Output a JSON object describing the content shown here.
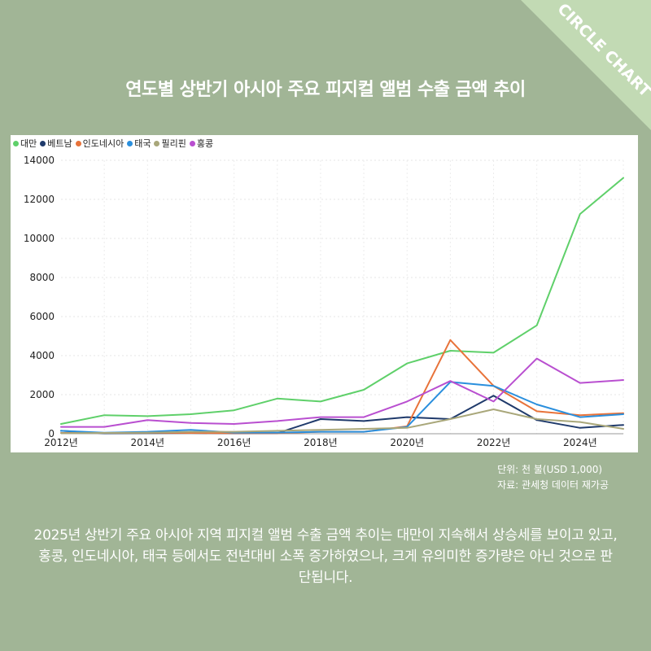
{
  "badge": {
    "text": "CIRCLE CHART"
  },
  "title": "연도별 상반기 아시아 주요 피지컬 앨범 수출 금액 추이",
  "notes": {
    "unit": "단위: 천 불(USD 1,000)",
    "source": "자료: 관세청 데이터 재가공"
  },
  "description": "2025년 상반기 주요 아시아 지역 피지컬 앨범 수출 금액 추이는 대만이 지속해서 상승세를 보이고 있고, 홍콩, 인도네시아, 태국 등에서도 전년대비 소폭 증가하였으나, 크게 유의미한 증가량은 아닌 것으로 판단됩니다.",
  "colors": {
    "background": "#a1b596",
    "badge": "#c2dab4"
  },
  "chart_data": {
    "type": "line",
    "x": [
      2012,
      2013,
      2014,
      2015,
      2016,
      2017,
      2018,
      2019,
      2020,
      2021,
      2022,
      2023,
      2024,
      2025
    ],
    "xtick_values": [
      2012,
      2014,
      2016,
      2018,
      2020,
      2022,
      2024
    ],
    "xtick_labels": [
      "2012년",
      "2014년",
      "2016년",
      "2018년",
      "2020년",
      "2022년",
      "2024년"
    ],
    "ylim": [
      0,
      14000
    ],
    "yticks": [
      0,
      2000,
      4000,
      6000,
      8000,
      10000,
      12000,
      14000
    ],
    "grid": true,
    "legend_position": "top-left",
    "series": [
      {
        "name": "대만",
        "color": "#5fd06a",
        "values": [
          500,
          950,
          900,
          1000,
          1200,
          1800,
          1650,
          2250,
          3600,
          4250,
          4150,
          5550,
          11250,
          13100
        ]
      },
      {
        "name": "베트남",
        "color": "#1f3a6b",
        "values": [
          150,
          20,
          30,
          40,
          20,
          30,
          750,
          650,
          850,
          750,
          1950,
          700,
          300,
          450
        ]
      },
      {
        "name": "인도네시아",
        "color": "#e8733a",
        "values": [
          40,
          40,
          50,
          40,
          30,
          30,
          100,
          100,
          380,
          4800,
          2450,
          1150,
          950,
          1050
        ]
      },
      {
        "name": "태국",
        "color": "#2a8fdd",
        "values": [
          150,
          50,
          100,
          200,
          60,
          60,
          100,
          100,
          350,
          2650,
          2450,
          1500,
          850,
          1000
        ]
      },
      {
        "name": "필리핀",
        "color": "#a9a77a",
        "values": [
          30,
          40,
          50,
          100,
          100,
          150,
          200,
          250,
          300,
          750,
          1250,
          750,
          600,
          250
        ]
      },
      {
        "name": "홍콩",
        "color": "#b94fd0",
        "values": [
          350,
          350,
          700,
          550,
          500,
          650,
          850,
          850,
          1650,
          2700,
          1650,
          3850,
          2600,
          2750
        ]
      }
    ]
  }
}
